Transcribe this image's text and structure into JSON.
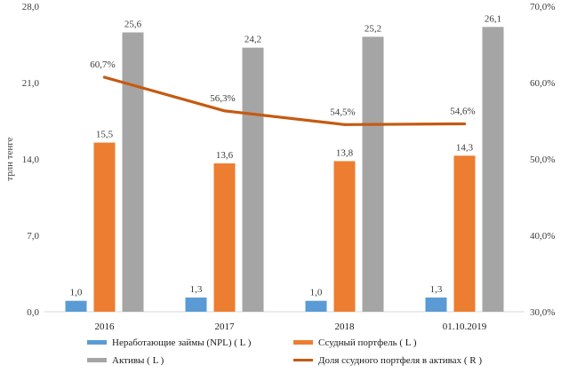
{
  "chart_data": {
    "type": "bar",
    "categories": [
      "2016",
      "2017",
      "2018",
      "01.10.2019"
    ],
    "series": [
      {
        "name": "Неработающие займы (NPL) ( L )",
        "axis": "left",
        "kind": "bar",
        "color": "#5b9bd5",
        "values": [
          1.0,
          1.3,
          1.0,
          1.3
        ],
        "labels": [
          "1,0",
          "1,3",
          "1,0",
          "1,3"
        ]
      },
      {
        "name": "Ссудный портфель ( L )",
        "axis": "left",
        "kind": "bar",
        "color": "#ed7d31",
        "values": [
          15.5,
          13.6,
          13.8,
          14.3
        ],
        "labels": [
          "15,5",
          "13,6",
          "13,8",
          "14,3"
        ]
      },
      {
        "name": "Активы ( L )",
        "axis": "left",
        "kind": "bar",
        "color": "#a5a5a5",
        "values": [
          25.6,
          24.2,
          25.2,
          26.1
        ],
        "labels": [
          "25,6",
          "24,2",
          "25,2",
          "26,1"
        ]
      },
      {
        "name": "Доля ссудного портфеля в активах ( R )",
        "axis": "right",
        "kind": "line",
        "color": "#c55a11",
        "values": [
          60.7,
          56.3,
          54.5,
          54.6
        ],
        "labels": [
          "60,7%",
          "56,3%",
          "54,5%",
          "54,6%"
        ]
      }
    ],
    "ylabel": "трлн тенге",
    "ylim": [
      0,
      28
    ],
    "yticks": [
      "0,0",
      "7,0",
      "14,0",
      "21,0",
      "28,0"
    ],
    "y2lim": [
      30,
      70
    ],
    "y2ticks": [
      "30,0%",
      "40,0%",
      "50,0%",
      "60,0%",
      "70,0%"
    ],
    "grid": false,
    "legend_position": "bottom"
  }
}
